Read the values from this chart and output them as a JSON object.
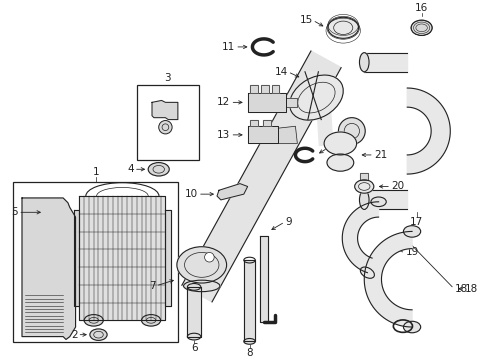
{
  "bg_color": "#ffffff",
  "line_color": "#222222",
  "gray_fill": "#d8d8d8",
  "light_fill": "#eeeeee",
  "figsize": [
    4.9,
    3.6
  ],
  "dpi": 100
}
